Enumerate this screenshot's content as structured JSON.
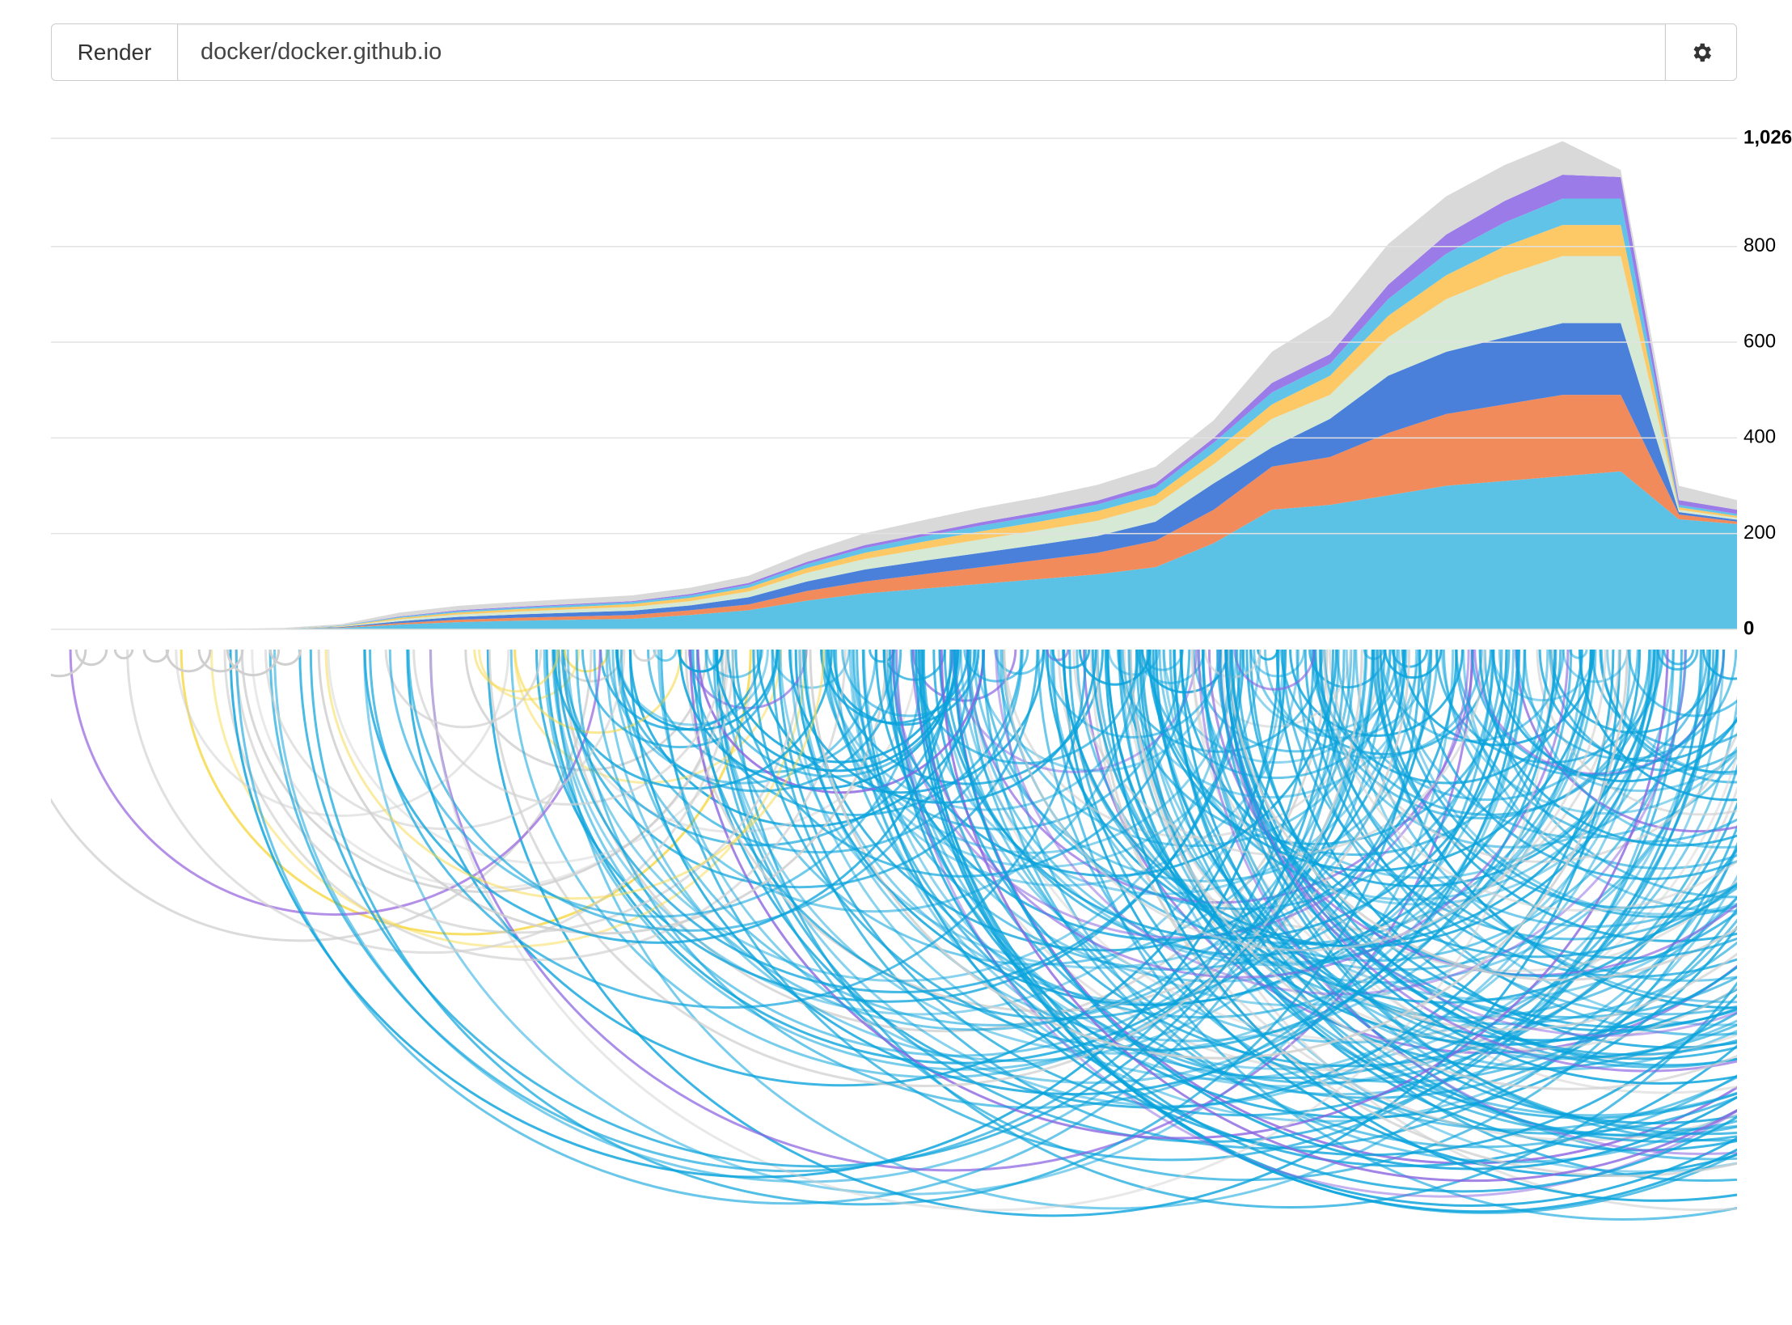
{
  "toolbar": {
    "button": "Render",
    "input": "docker/docker.github.io"
  },
  "chart_data": {
    "type": "stacked-area",
    "ylim": [
      0,
      1026
    ],
    "yticks": [
      0,
      200,
      400,
      600,
      800,
      {
        "value": 1026,
        "label": "1,026"
      }
    ],
    "grid": true,
    "series": [
      {
        "color": "#5bc2e5",
        "values": [
          0,
          0,
          0,
          0,
          1,
          3,
          10,
          15,
          18,
          20,
          22,
          30,
          40,
          60,
          75,
          85,
          95,
          105,
          115,
          130,
          180,
          250,
          260,
          280,
          300,
          310,
          320,
          330,
          230,
          220
        ]
      },
      {
        "color": "#f28b5b",
        "values": [
          0,
          0,
          0,
          0,
          0,
          1,
          3,
          5,
          6,
          7,
          8,
          10,
          12,
          20,
          25,
          30,
          35,
          40,
          45,
          55,
          70,
          90,
          100,
          130,
          150,
          160,
          170,
          160,
          10,
          5
        ]
      },
      {
        "color": "#4a80d9",
        "values": [
          0,
          0,
          0,
          0,
          0,
          1,
          4,
          6,
          7,
          8,
          9,
          10,
          15,
          20,
          25,
          28,
          30,
          32,
          35,
          40,
          55,
          40,
          80,
          120,
          130,
          140,
          150,
          150,
          5,
          4
        ]
      },
      {
        "color": "#d5e9d5",
        "values": [
          0,
          0,
          0,
          0,
          0,
          1,
          4,
          5,
          6,
          7,
          8,
          9,
          12,
          18,
          22,
          25,
          28,
          30,
          32,
          35,
          40,
          60,
          50,
          80,
          110,
          130,
          140,
          140,
          5,
          4
        ]
      },
      {
        "color": "#fdc866",
        "values": [
          0,
          0,
          0,
          0,
          0,
          1,
          3,
          4,
          5,
          5,
          6,
          7,
          8,
          10,
          13,
          15,
          17,
          18,
          20,
          20,
          25,
          30,
          40,
          45,
          50,
          60,
          65,
          65,
          5,
          4
        ]
      },
      {
        "color": "#62c3e8",
        "values": [
          0,
          0,
          0,
          0,
          0,
          1,
          2,
          3,
          3,
          4,
          4,
          5,
          6,
          8,
          10,
          11,
          12,
          13,
          14,
          16,
          20,
          25,
          25,
          35,
          45,
          50,
          55,
          55,
          5,
          4
        ]
      },
      {
        "color": "#9a7be8",
        "values": [
          0,
          0,
          0,
          0,
          0,
          0,
          1,
          2,
          2,
          2,
          2,
          3,
          4,
          5,
          6,
          6,
          7,
          7,
          8,
          9,
          10,
          20,
          20,
          30,
          40,
          45,
          50,
          45,
          10,
          9
        ]
      },
      {
        "color": "#d9d9d9",
        "values": [
          0,
          0,
          0,
          1,
          2,
          3,
          8,
          9,
          10,
          11,
          12,
          13,
          15,
          20,
          25,
          28,
          30,
          31,
          33,
          35,
          37,
          65,
          80,
          85,
          80,
          75,
          70,
          15,
          30,
          20
        ]
      }
    ]
  }
}
